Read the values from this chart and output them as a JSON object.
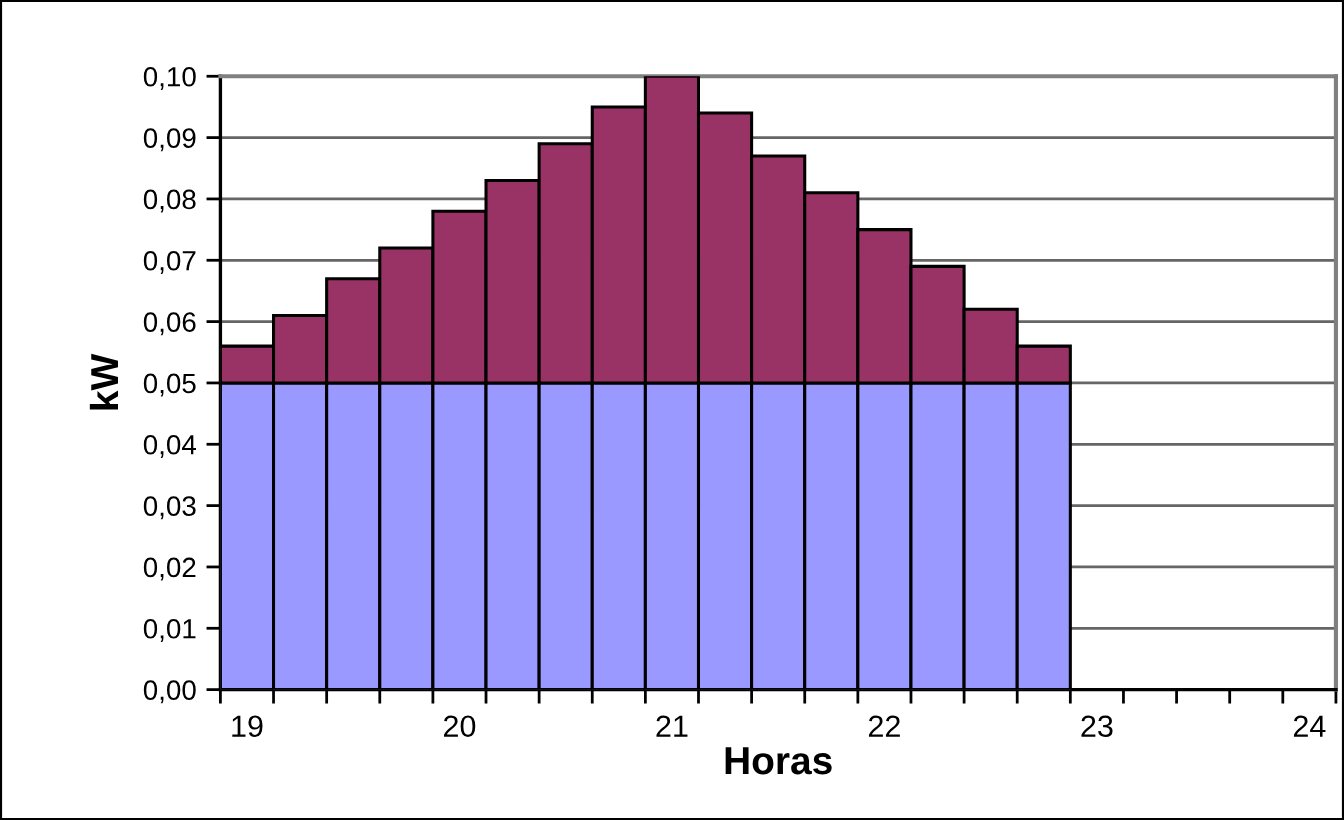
{
  "chart_data": {
    "type": "bar",
    "stacked": true,
    "xlabel": "Horas",
    "ylabel": "kW",
    "categories": [
      "19",
      null,
      null,
      null,
      "20",
      null,
      null,
      null,
      "21",
      null,
      null,
      null,
      "22",
      null,
      null,
      null,
      "23",
      null,
      null,
      null,
      "24"
    ],
    "series": [
      {
        "color": "#9999ff",
        "values": [
          0.05,
          0.05,
          0.05,
          0.05,
          0.05,
          0.05,
          0.05,
          0.05,
          0.05,
          0.05,
          0.05,
          0.05,
          0.05,
          0.05,
          0.05,
          0.05,
          null,
          null,
          null,
          null,
          null
        ]
      },
      {
        "color": "#993366",
        "values": [
          0.006,
          0.011,
          0.017,
          0.022,
          0.028,
          0.033,
          0.039,
          0.045,
          0.05,
          0.044,
          0.037,
          0.031,
          0.025,
          0.019,
          0.012,
          0.006,
          null,
          null,
          null,
          null,
          null
        ]
      }
    ],
    "ylim": [
      0,
      0.1
    ],
    "yticks": [
      {
        "value": 0,
        "label": "0,00"
      },
      {
        "value": 0.01,
        "label": "0,01"
      },
      {
        "value": 0.02,
        "label": "0,02"
      },
      {
        "value": 0.03,
        "label": "0,03"
      },
      {
        "value": 0.04,
        "label": "0,04"
      },
      {
        "value": 0.05,
        "label": "0,05"
      },
      {
        "value": 0.06,
        "label": "0,06"
      },
      {
        "value": 0.07,
        "label": "0,07"
      },
      {
        "value": 0.08,
        "label": "0,08"
      },
      {
        "value": 0.09,
        "label": "0,09"
      },
      {
        "value": 0.1,
        "label": "0,10"
      }
    ],
    "grid": "y"
  }
}
